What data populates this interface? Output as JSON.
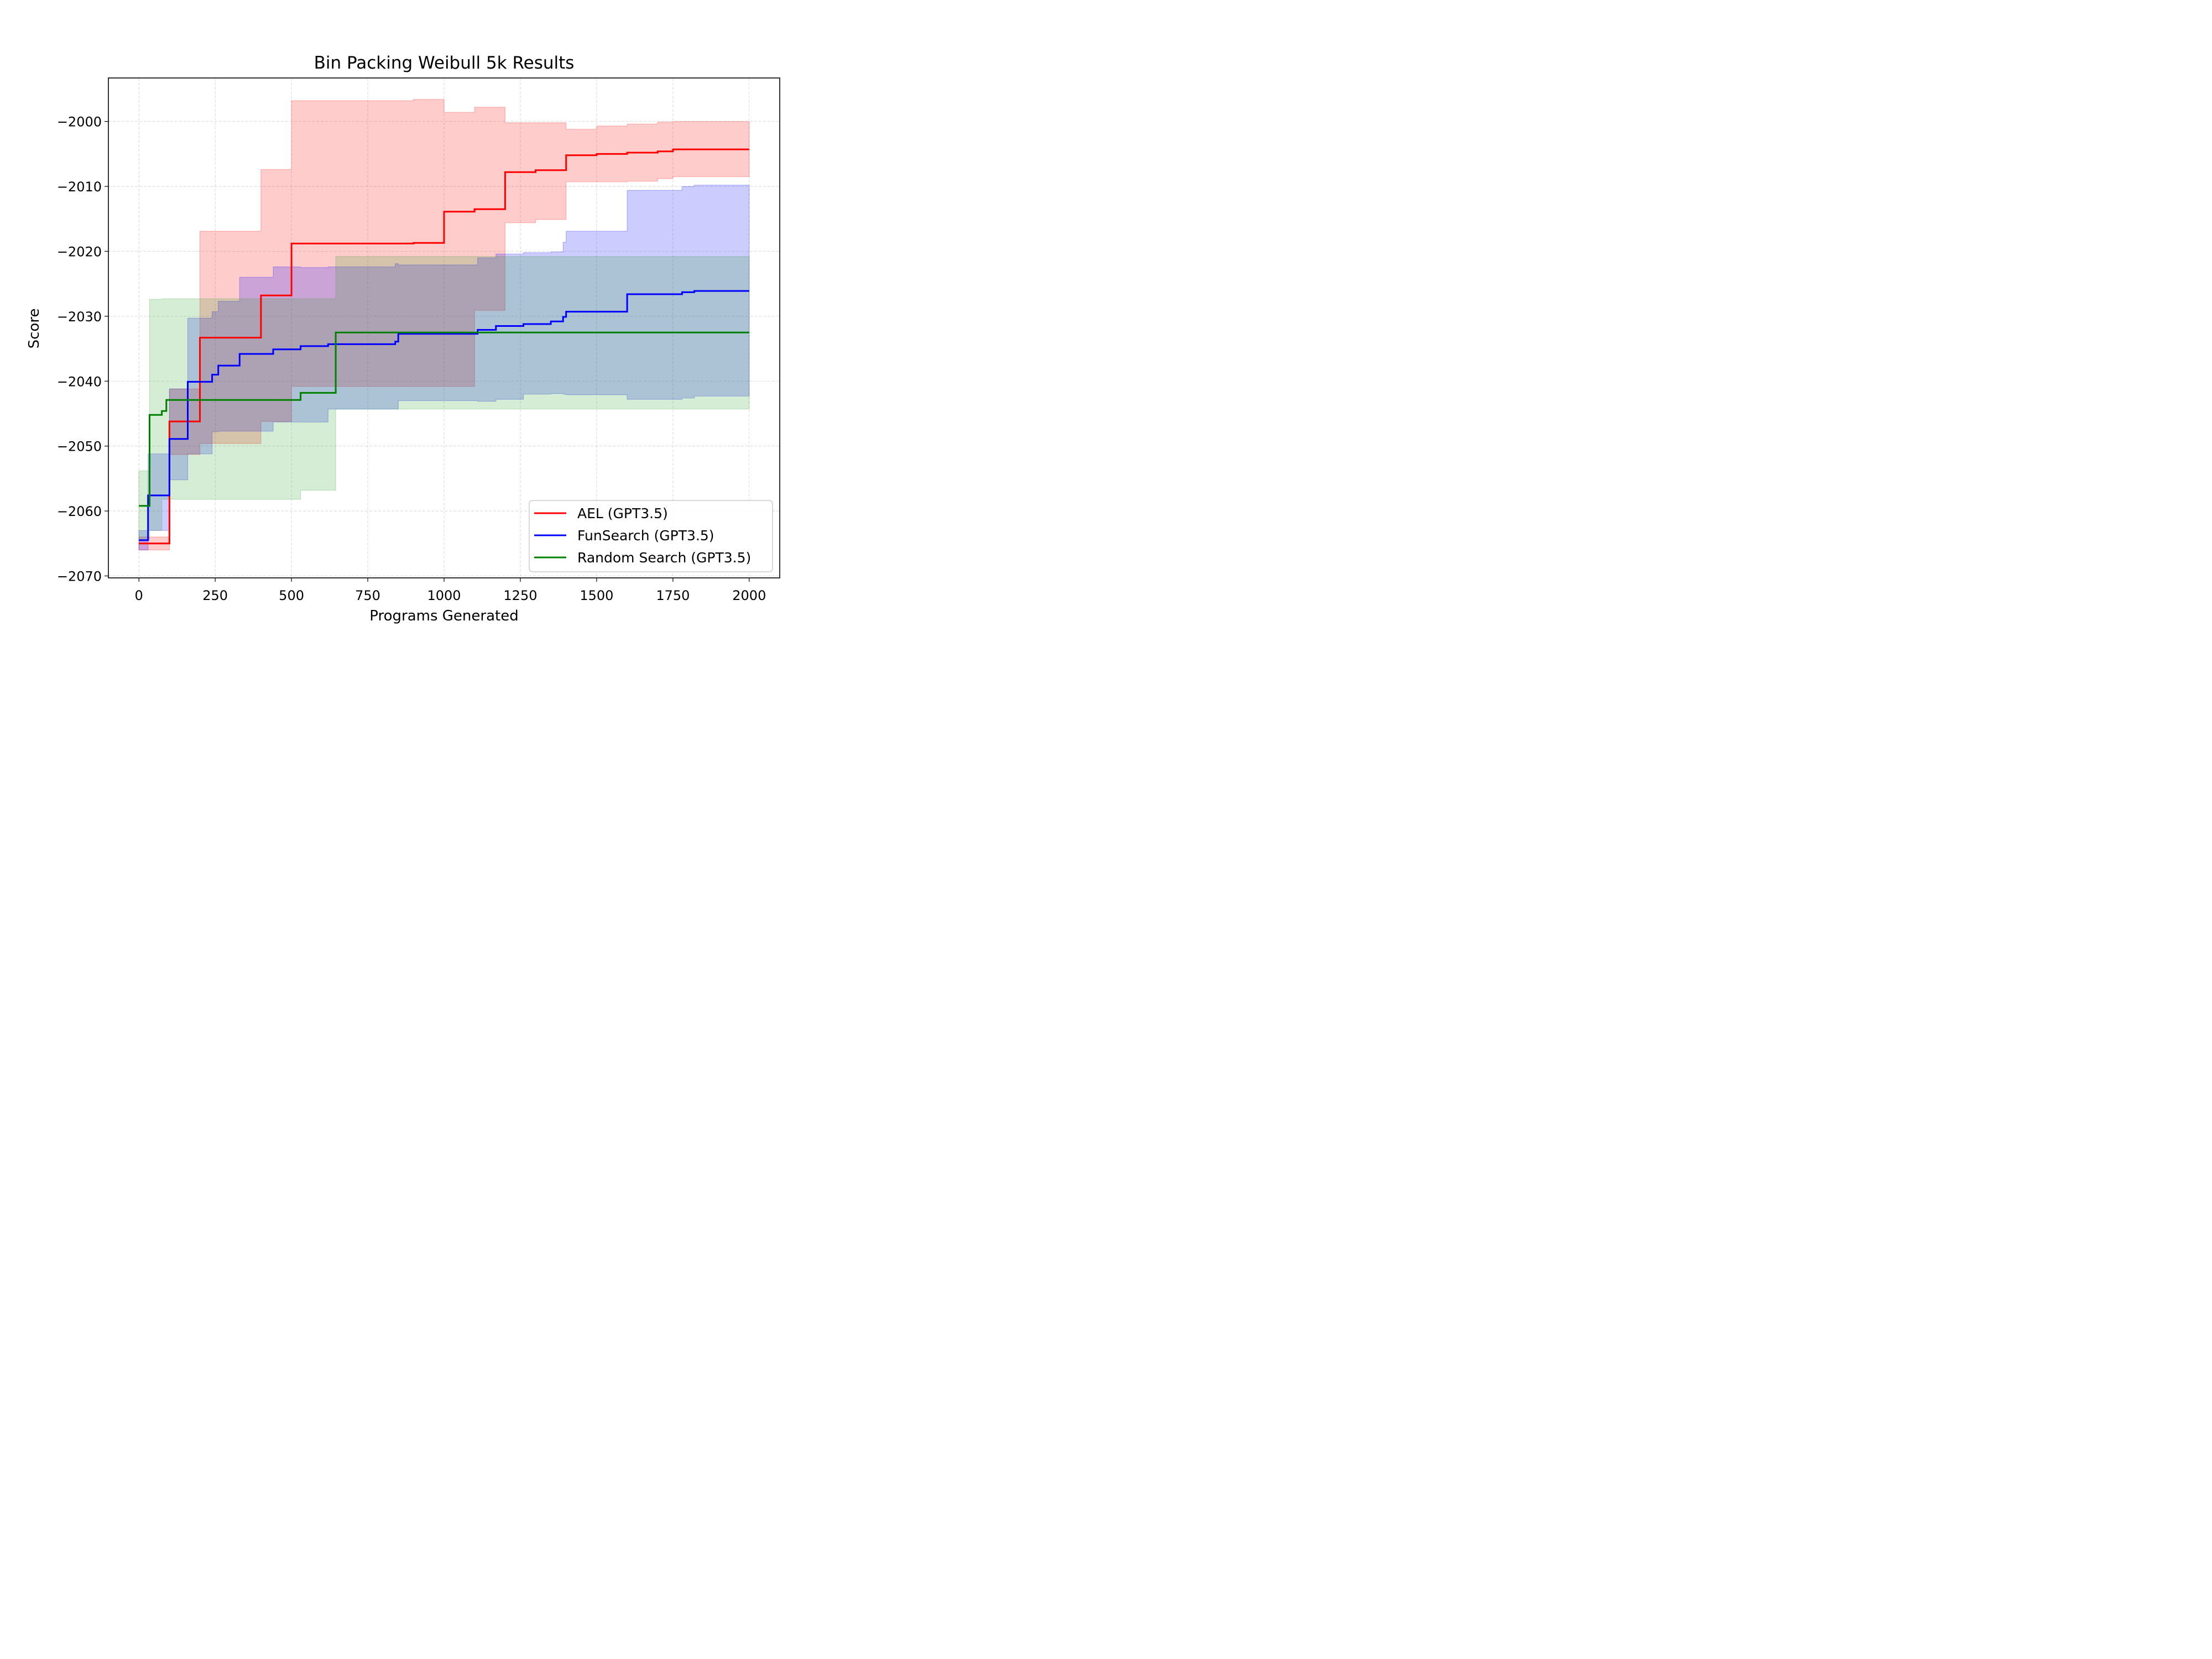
{
  "chart_data": {
    "type": "line",
    "title": "Bin Packing Weibull 5k Results",
    "xlabel": "Programs Generated",
    "ylabel": "Score",
    "xlim": [
      -100,
      2100
    ],
    "ylim": [
      -2070.3,
      -1993.3
    ],
    "xticks": [
      0,
      250,
      500,
      750,
      1000,
      1250,
      1500,
      1750,
      2000
    ],
    "yticks": [
      -2070,
      -2060,
      -2050,
      -2040,
      -2030,
      -2020,
      -2010,
      -2000
    ],
    "xtick_labels": [
      "0",
      "250",
      "500",
      "750",
      "1000",
      "1250",
      "1500",
      "1750",
      "2000"
    ],
    "ytick_labels": [
      "−2070",
      "−2060",
      "−2050",
      "−2040",
      "−2030",
      "−2020",
      "−2010",
      "−2000"
    ],
    "grid": true,
    "legend_position": "lower right",
    "series": [
      {
        "name": "AEL (GPT3.5)",
        "color": "#ff0000",
        "band_color": "#ff0000",
        "x": [
          0,
          100,
          200,
          400,
          500,
          900,
          1000,
          1100,
          1200,
          1300,
          1400,
          1500,
          1600,
          1700,
          1750,
          2000
        ],
        "y": [
          -2065,
          -2046.2,
          -2033.3,
          -2026.8,
          -2018.8,
          -2018.7,
          -2013.9,
          -2013.5,
          -2007.8,
          -2007.5,
          -2005.2,
          -2005,
          -2004.8,
          -2004.6,
          -2004.3,
          -2004.3
        ],
        "upper": [
          -2064,
          -2041.2,
          -2016.9,
          -2007.4,
          -1996.8,
          -1996.6,
          -1998.6,
          -1997.8,
          -2000.2,
          -2000.2,
          -2001.2,
          -2000.7,
          -2000.4,
          -2000.1,
          -2000.0,
          -2000.0
        ],
        "lower": [
          -2066,
          -2051.3,
          -2049.6,
          -2046.2,
          -2040.8,
          -2040.8,
          -2040.8,
          -2029.1,
          -2015.6,
          -2015.1,
          -2009.3,
          -2009.3,
          -2009.2,
          -2008.8,
          -2008.5,
          -2008.5
        ]
      },
      {
        "name": "FunSearch (GPT3.5)",
        "color": "#0000ff",
        "band_color": "#0000ff",
        "x": [
          0,
          30,
          100,
          160,
          240,
          260,
          330,
          440,
          530,
          620,
          840,
          850,
          1110,
          1170,
          1260,
          1350,
          1390,
          1400,
          1600,
          1780,
          1820,
          2000
        ],
        "y": [
          -2064.5,
          -2057.6,
          -2048.9,
          -2040.1,
          -2039,
          -2037.6,
          -2035.8,
          -2035.1,
          -2034.6,
          -2034.3,
          -2033.9,
          -2032.7,
          -2032.1,
          -2031.5,
          -2031.2,
          -2030.8,
          -2030.1,
          -2029.3,
          -2026.6,
          -2026.3,
          -2026.1,
          -2026.1
        ],
        "upper": [
          -2063,
          -2051.2,
          -2041.2,
          -2030.3,
          -2029.3,
          -2027.7,
          -2024.0,
          -2022.4,
          -2022.5,
          -2022.4,
          -2021.9,
          -2022.1,
          -2021.0,
          -2020.4,
          -2020.2,
          -2020.1,
          -2018.6,
          -2016.9,
          -2010.6,
          -2010.0,
          -2009.8,
          -2009.8
        ],
        "lower": [
          -2066,
          -2063.0,
          -2055.2,
          -2051.2,
          -2047.8,
          -2047.7,
          -2047.7,
          -2046.3,
          -2046.3,
          -2044.3,
          -2044.3,
          -2043.0,
          -2043.1,
          -2042.8,
          -2042.0,
          -2041.9,
          -2042.0,
          -2042.1,
          -2042.8,
          -2042.6,
          -2042.3,
          -2042.3
        ]
      },
      {
        "name": "Random Search (GPT3.5)",
        "color": "#008000",
        "band_color": "#2ca02c",
        "x": [
          0,
          35,
          75,
          90,
          200,
          530,
          645,
          1200,
          2000
        ],
        "y": [
          -2059.2,
          -2045.2,
          -2044.6,
          -2042.9,
          -2042.9,
          -2041.8,
          -2032.5,
          -2032.5,
          -2032.5
        ],
        "upper": [
          -2053.8,
          -2027.4,
          -2027.3,
          -2027.3,
          -2027.3,
          -2027.3,
          -2020.8,
          -2020.8,
          -2020.8
        ],
        "lower": [
          -2064.4,
          -2063.0,
          -2058.2,
          -2058.2,
          -2058.2,
          -2056.8,
          -2044.3,
          -2044.3,
          -2044.3
        ]
      }
    ]
  }
}
